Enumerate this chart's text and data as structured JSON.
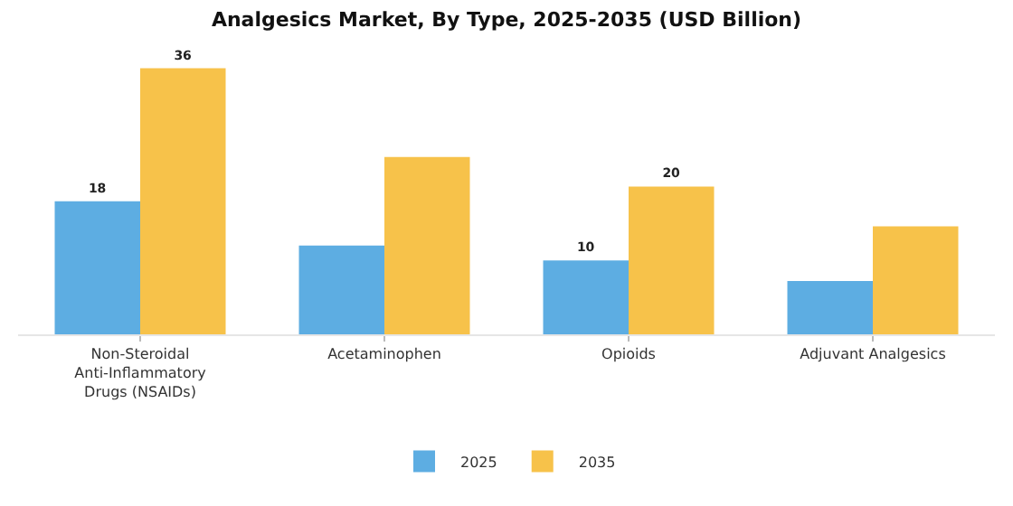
{
  "chart_data": {
    "type": "bar",
    "title": "Analgesics Market, By Type, 2025-2035 (USD Billion)",
    "categories": [
      "Non-Steroidal Anti-Inflammatory Drugs (NSAIDs)",
      "Acetaminophen",
      "Opioids",
      "Adjuvant Analgesics"
    ],
    "series": [
      {
        "name": "2025",
        "color": "#5dade2",
        "values": [
          18,
          12,
          10,
          7.2
        ],
        "value_labels": [
          "18",
          null,
          "10",
          null
        ]
      },
      {
        "name": "2035",
        "color": "#f7c24a",
        "values": [
          36,
          24,
          20,
          14.6
        ],
        "value_labels": [
          "36",
          null,
          "20",
          null
        ]
      }
    ],
    "legend": "bottom",
    "grid": false
  }
}
